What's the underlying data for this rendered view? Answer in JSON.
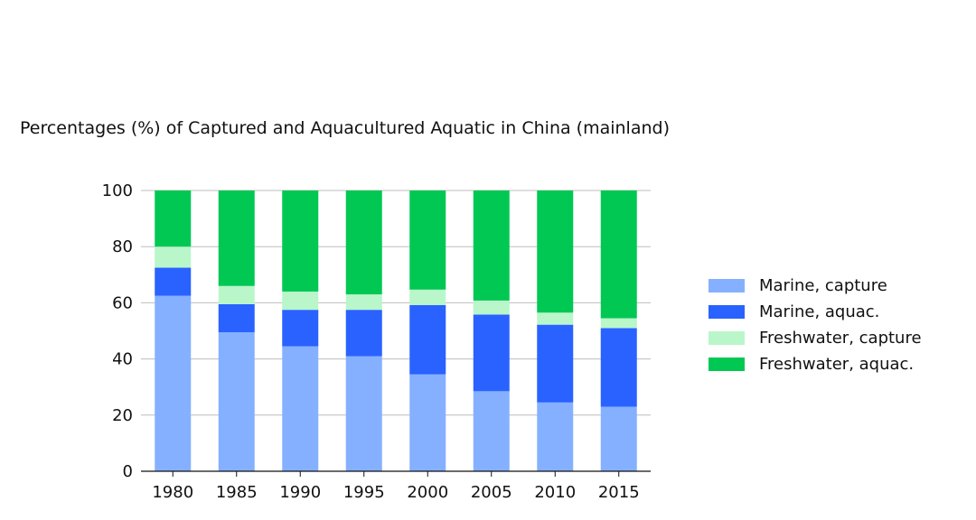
{
  "chart_data": {
    "type": "bar",
    "stacked": true,
    "title": "Percentages (%) of Captured and Aquacultured Aquatic in China (mainland)",
    "xlabel": "",
    "ylabel": "",
    "categories": [
      "1980",
      "1985",
      "1990",
      "1995",
      "2000",
      "2005",
      "2010",
      "2015"
    ],
    "ylim": [
      0,
      100
    ],
    "yticks": [
      "0",
      "20",
      "40",
      "60",
      "80",
      "100"
    ],
    "grid": "horizontal",
    "legend_position": "right",
    "series": [
      {
        "name": "Marine, capture",
        "color": "#85b0ff",
        "values": [
          62.5,
          49.5,
          44.5,
          41,
          34.5,
          28.5,
          24.5,
          23
        ]
      },
      {
        "name": "Marine, aquac.",
        "color": "#2962ff",
        "values": [
          10,
          10,
          13,
          16.5,
          24.7,
          27.3,
          27.7,
          28
        ]
      },
      {
        "name": "Freshwater, capture",
        "color": "#b9f6ca",
        "values": [
          7.5,
          6.5,
          6.5,
          5.5,
          5.5,
          5,
          4.3,
          3.5
        ]
      },
      {
        "name": "Freshwater, aquac.",
        "color": "#00c853",
        "values": [
          20,
          34,
          36,
          37,
          35.3,
          39.2,
          43.5,
          45.5
        ]
      }
    ]
  }
}
